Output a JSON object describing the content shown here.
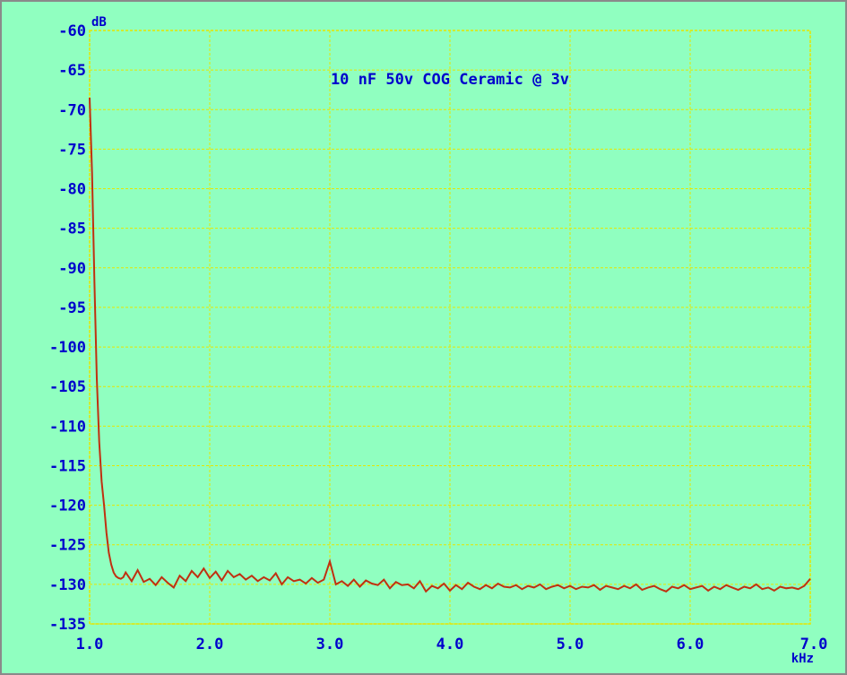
{
  "chart_data": {
    "type": "line",
    "title": "10 nF 50v COG Ceramic @ 3v",
    "xlabel": "kHz",
    "ylabel": "dB",
    "xlim": [
      1.0,
      7.0
    ],
    "ylim": [
      -135,
      -60
    ],
    "x_ticks": [
      1.0,
      2.0,
      3.0,
      4.0,
      5.0,
      6.0,
      7.0
    ],
    "x_tick_labels": [
      "1.0",
      "2.0",
      "3.0",
      "4.0",
      "5.0",
      "6.0",
      "7.0"
    ],
    "y_ticks": [
      -60,
      -65,
      -70,
      -75,
      -80,
      -85,
      -90,
      -95,
      -100,
      -105,
      -110,
      -115,
      -120,
      -125,
      -130,
      -135
    ],
    "y_tick_labels": [
      "-60",
      "-65",
      "-70",
      "-75",
      "-80",
      "-85",
      "-90",
      "-95",
      "-100",
      "-105",
      "-110",
      "-115",
      "-120",
      "-125",
      "-130",
      "-135"
    ],
    "grid": true,
    "colors": {
      "background": "#90ffc0",
      "grid": "#e6e600",
      "line": "#c03010",
      "text": "#0000cc"
    },
    "series": [
      {
        "x": [
          1.0,
          1.02,
          1.04,
          1.06,
          1.08,
          1.1,
          1.12,
          1.14,
          1.16,
          1.18,
          1.2,
          1.22,
          1.24,
          1.26,
          1.28,
          1.3,
          1.35,
          1.4,
          1.45,
          1.5,
          1.55,
          1.6,
          1.65,
          1.7,
          1.75,
          1.8,
          1.85,
          1.9,
          1.95,
          2.0,
          2.05,
          2.1,
          2.15,
          2.2,
          2.25,
          2.3,
          2.35,
          2.4,
          2.45,
          2.5,
          2.55,
          2.6,
          2.65,
          2.7,
          2.75,
          2.8,
          2.85,
          2.9,
          2.95,
          3.0,
          3.05,
          3.1,
          3.15,
          3.2,
          3.25,
          3.3,
          3.35,
          3.4,
          3.45,
          3.5,
          3.55,
          3.6,
          3.65,
          3.7,
          3.75,
          3.8,
          3.85,
          3.9,
          3.95,
          4.0,
          4.05,
          4.1,
          4.15,
          4.2,
          4.25,
          4.3,
          4.35,
          4.4,
          4.45,
          4.5,
          4.55,
          4.6,
          4.65,
          4.7,
          4.75,
          4.8,
          4.85,
          4.9,
          4.95,
          5.0,
          5.05,
          5.1,
          5.15,
          5.2,
          5.25,
          5.3,
          5.35,
          5.4,
          5.45,
          5.5,
          5.55,
          5.6,
          5.65,
          5.7,
          5.75,
          5.8,
          5.85,
          5.9,
          5.95,
          6.0,
          6.05,
          6.1,
          6.15,
          6.2,
          6.25,
          6.3,
          6.35,
          6.4,
          6.45,
          6.5,
          6.55,
          6.6,
          6.65,
          6.7,
          6.75,
          6.8,
          6.85,
          6.9,
          6.95,
          7.0
        ],
        "y": [
          -68.5,
          -78,
          -92,
          -104,
          -112,
          -117,
          -120,
          -123.5,
          -126,
          -127.5,
          -128.5,
          -129,
          -129.2,
          -129.3,
          -129.1,
          -128.5,
          -129.6,
          -128.2,
          -129.7,
          -129.3,
          -130.1,
          -129.1,
          -129.8,
          -130.4,
          -128.9,
          -129.6,
          -128.3,
          -129.1,
          -128.0,
          -129.2,
          -128.4,
          -129.5,
          -128.3,
          -129.1,
          -128.7,
          -129.4,
          -128.9,
          -129.6,
          -129.1,
          -129.5,
          -128.6,
          -130.0,
          -129.1,
          -129.6,
          -129.4,
          -129.9,
          -129.2,
          -129.8,
          -129.4,
          -127.1,
          -130.0,
          -129.6,
          -130.2,
          -129.4,
          -130.3,
          -129.5,
          -129.9,
          -130.1,
          -129.4,
          -130.5,
          -129.7,
          -130.1,
          -130.0,
          -130.5,
          -129.6,
          -130.9,
          -130.2,
          -130.5,
          -129.9,
          -130.8,
          -130.1,
          -130.6,
          -129.8,
          -130.3,
          -130.6,
          -130.1,
          -130.5,
          -129.9,
          -130.3,
          -130.4,
          -130.1,
          -130.6,
          -130.2,
          -130.4,
          -130.0,
          -130.6,
          -130.3,
          -130.1,
          -130.5,
          -130.2,
          -130.6,
          -130.3,
          -130.4,
          -130.1,
          -130.7,
          -130.2,
          -130.4,
          -130.6,
          -130.2,
          -130.5,
          -130.0,
          -130.7,
          -130.4,
          -130.2,
          -130.6,
          -130.9,
          -130.3,
          -130.5,
          -130.1,
          -130.6,
          -130.4,
          -130.2,
          -130.8,
          -130.3,
          -130.6,
          -130.1,
          -130.4,
          -130.7,
          -130.3,
          -130.5,
          -130.0,
          -130.6,
          -130.4,
          -130.8,
          -130.3,
          -130.5,
          -130.4,
          -130.6,
          -130.2,
          -129.3
        ]
      }
    ]
  }
}
